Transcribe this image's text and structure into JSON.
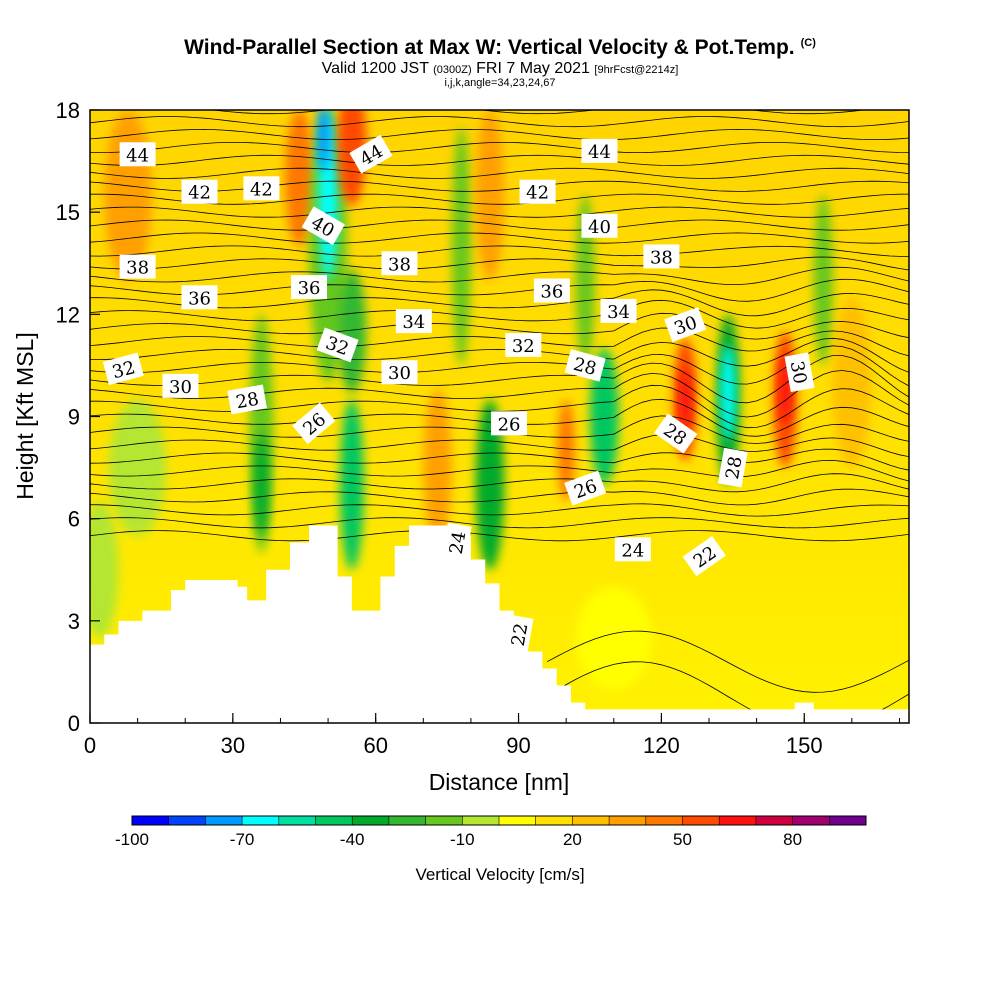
{
  "header": {
    "title": "Wind-Parallel Section at Max W: Vertical Velocity & Pot.Temp.",
    "copyright": "(C)",
    "valid_prefix": "Valid 1200 JST",
    "valid_utc": "(0300Z)",
    "valid_date": "FRI 7 May 2021",
    "forecast": "[9hrFcst@2214z]",
    "indices": "i,j,k,angle=34,23,24,67"
  },
  "chart_data": {
    "type": "heatmap",
    "xlabel": "Distance [nm]",
    "ylabel": "Height [Kft MSL]",
    "xlim": [
      0,
      172
    ],
    "ylim": [
      0,
      18
    ],
    "x_ticks": [
      "0",
      "30",
      "60",
      "90",
      "120",
      "150"
    ],
    "y_ticks": [
      "0",
      "3",
      "6",
      "9",
      "12",
      "15",
      "18"
    ],
    "colorbar": {
      "label": "Vertical Velocity [cm/s]",
      "tick_labels": [
        "-100",
        "-70",
        "-40",
        "-10",
        "20",
        "50",
        "80"
      ],
      "colors": [
        "#0000ff",
        "#0044ff",
        "#0099ff",
        "#00ffff",
        "#00e0a0",
        "#00c860",
        "#00aa2a",
        "#33b830",
        "#66c81e",
        "#b4e632",
        "#ffff00",
        "#ffe000",
        "#ffc000",
        "#ffa000",
        "#ff7800",
        "#ff4a00",
        "#ff1010",
        "#d00040",
        "#a00070",
        "#700090"
      ]
    },
    "theta_contour_labels": [
      {
        "text": "44",
        "x": 10,
        "y": 16.7,
        "rot": 0
      },
      {
        "text": "42",
        "x": 23,
        "y": 15.6,
        "rot": 0
      },
      {
        "text": "42",
        "x": 36,
        "y": 15.7,
        "rot": 0
      },
      {
        "text": "44",
        "x": 59,
        "y": 16.7,
        "rot": -30
      },
      {
        "text": "44",
        "x": 107,
        "y": 16.8,
        "rot": 0
      },
      {
        "text": "42",
        "x": 94,
        "y": 15.6,
        "rot": 0
      },
      {
        "text": "40",
        "x": 49,
        "y": 14.6,
        "rot": 30
      },
      {
        "text": "40",
        "x": 107,
        "y": 14.6,
        "rot": 0
      },
      {
        "text": "38",
        "x": 10,
        "y": 13.4,
        "rot": 0
      },
      {
        "text": "38",
        "x": 65,
        "y": 13.5,
        "rot": 0
      },
      {
        "text": "38",
        "x": 120,
        "y": 13.7,
        "rot": 0
      },
      {
        "text": "36",
        "x": 23,
        "y": 12.5,
        "rot": 0
      },
      {
        "text": "36",
        "x": 46,
        "y": 12.8,
        "rot": 0
      },
      {
        "text": "36",
        "x": 97,
        "y": 12.7,
        "rot": 0
      },
      {
        "text": "34",
        "x": 68,
        "y": 11.8,
        "rot": 0
      },
      {
        "text": "34",
        "x": 111,
        "y": 12.1,
        "rot": 0
      },
      {
        "text": "32",
        "x": 7,
        "y": 10.4,
        "rot": -15
      },
      {
        "text": "32",
        "x": 52,
        "y": 11.1,
        "rot": 20
      },
      {
        "text": "32",
        "x": 91,
        "y": 11.1,
        "rot": 0
      },
      {
        "text": "30",
        "x": 19,
        "y": 9.9,
        "rot": 0
      },
      {
        "text": "30",
        "x": 65,
        "y": 10.3,
        "rot": 0
      },
      {
        "text": "30",
        "x": 125,
        "y": 11.7,
        "rot": -20
      },
      {
        "text": "30",
        "x": 149,
        "y": 10.3,
        "rot": 80
      },
      {
        "text": "28",
        "x": 33,
        "y": 9.5,
        "rot": -10
      },
      {
        "text": "28",
        "x": 104,
        "y": 10.5,
        "rot": 15
      },
      {
        "text": "28",
        "x": 123,
        "y": 8.5,
        "rot": 35
      },
      {
        "text": "28",
        "x": 135,
        "y": 7.5,
        "rot": -80
      },
      {
        "text": "26",
        "x": 47,
        "y": 8.8,
        "rot": -40
      },
      {
        "text": "26",
        "x": 88,
        "y": 8.8,
        "rot": 0
      },
      {
        "text": "26",
        "x": 104,
        "y": 6.9,
        "rot": -20
      },
      {
        "text": "24",
        "x": 77,
        "y": 5.3,
        "rot": -80
      },
      {
        "text": "24",
        "x": 114,
        "y": 5.1,
        "rot": 0
      },
      {
        "text": "22",
        "x": 129,
        "y": 4.9,
        "rot": -35
      },
      {
        "text": "22",
        "x": 90,
        "y": 2.6,
        "rot": -80
      }
    ]
  },
  "colors": {
    "background": "#ffffff",
    "terrain": "#ffffff"
  }
}
